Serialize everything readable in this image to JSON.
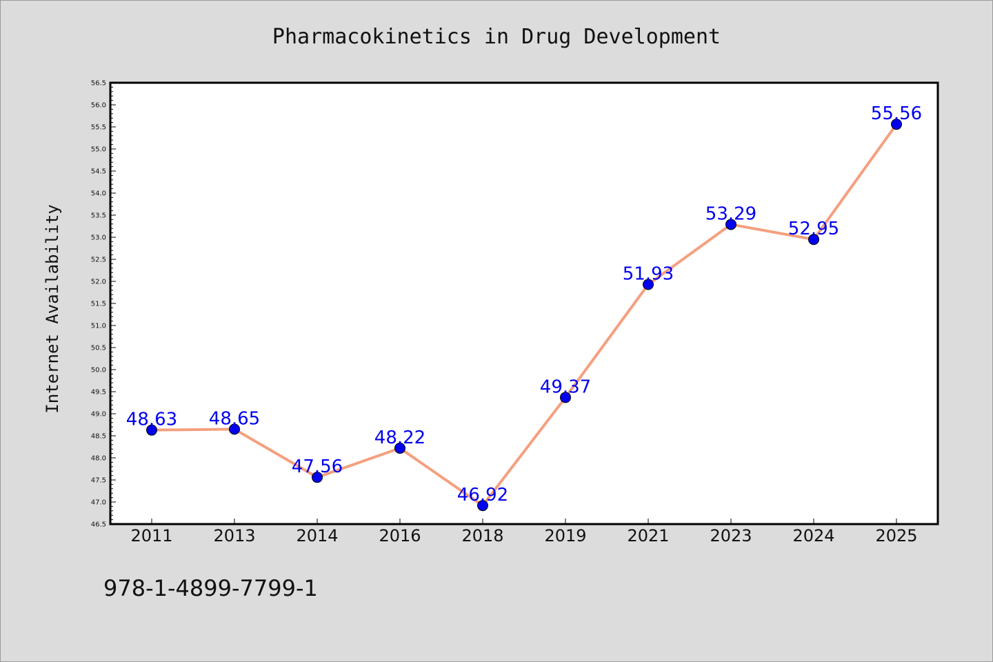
{
  "chart_data": {
    "type": "line",
    "title": "Pharmacokinetics in Drug Development",
    "xlabel": "",
    "ylabel": "Internet Availability",
    "categories": [
      "2011",
      "2013",
      "2014",
      "2016",
      "2018",
      "2019",
      "2021",
      "2023",
      "2024",
      "2025"
    ],
    "series": [
      {
        "values": [
          48.63,
          48.65,
          47.56,
          48.22,
          46.92,
          49.37,
          51.93,
          53.29,
          52.95,
          55.56
        ],
        "data_labels": [
          "48.63",
          "48.65",
          "47.56",
          "48.22",
          "46.92",
          "49.37",
          "51.93",
          "53.29",
          "52.95",
          "55.56"
        ]
      }
    ],
    "ylim": [
      46.5,
      56.5
    ],
    "y_ticks": [
      "46.5",
      "47.0",
      "47.5",
      "48.0",
      "48.5",
      "49.0",
      "49.5",
      "50.0",
      "50.5",
      "51.0",
      "51.5",
      "52.0",
      "52.5",
      "53.0",
      "53.5",
      "54.0",
      "54.5",
      "55.0",
      "55.5",
      "56.0",
      "56.5"
    ],
    "y_tick_values": [
      46.5,
      47.0,
      47.5,
      48.0,
      48.5,
      49.0,
      49.5,
      50.0,
      50.5,
      51.0,
      51.5,
      52.0,
      52.5,
      53.0,
      53.5,
      54.0,
      54.5,
      55.0,
      55.5,
      56.0,
      56.5
    ],
    "grid": false,
    "line_color": "#f4a07f",
    "marker_color": "#0000ee",
    "label_color": "#0000ee"
  },
  "footer": {
    "isbn": "978-1-4899-7799-1"
  }
}
